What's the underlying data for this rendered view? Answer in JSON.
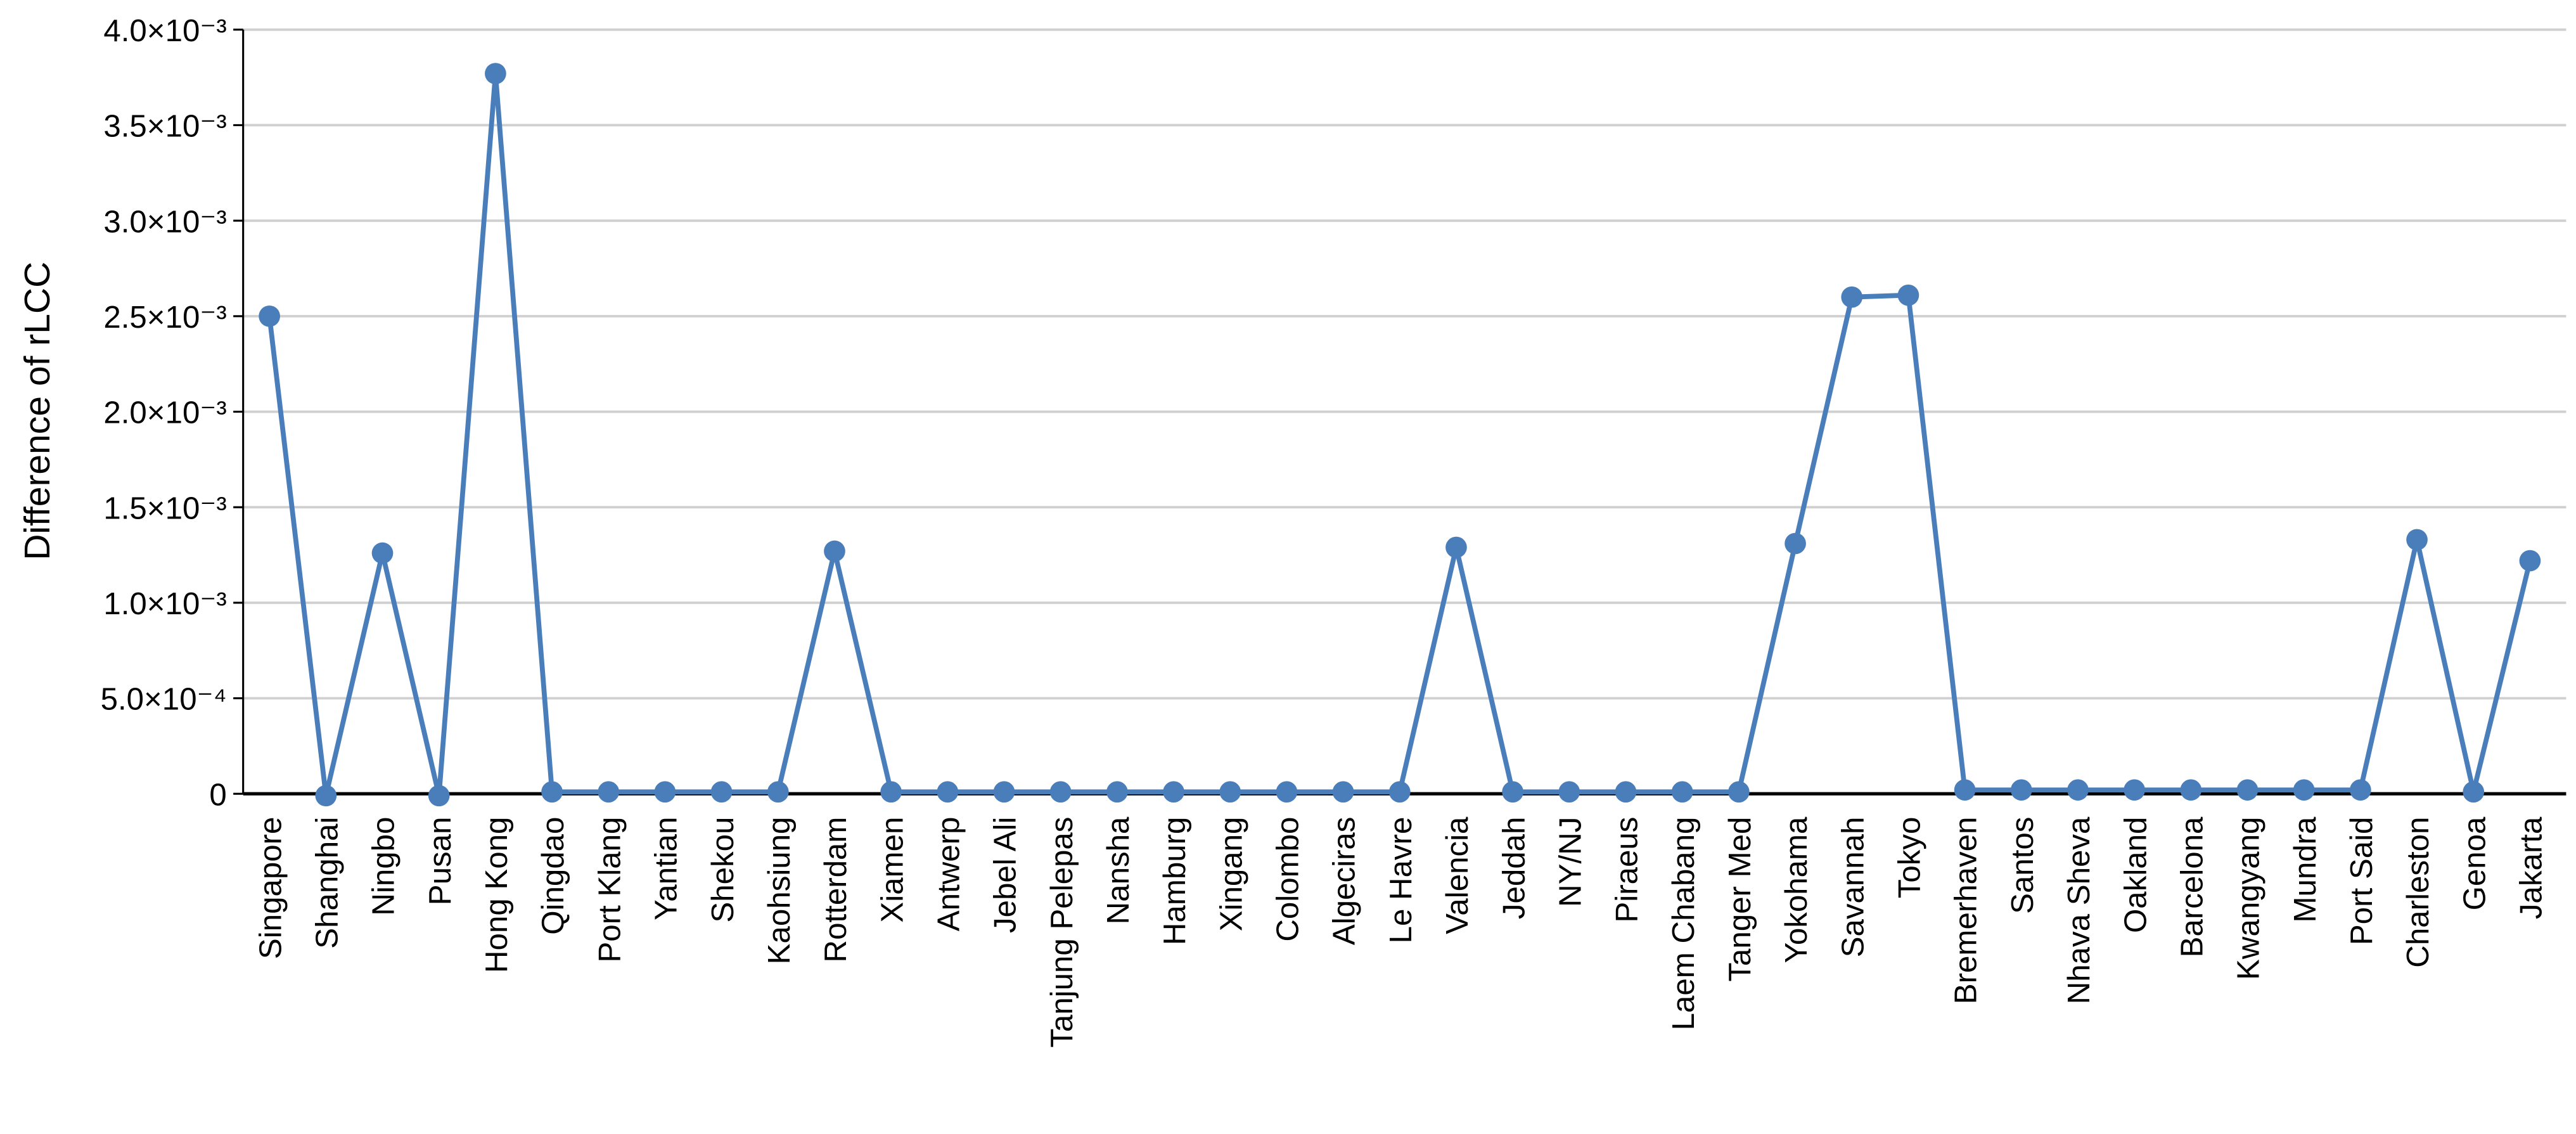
{
  "chart_data": {
    "type": "line",
    "y_label": "Difference of rLCC",
    "categories": [
      "Singapore",
      "Shanghai",
      "Ningbo",
      "Pusan",
      "Hong Kong",
      "Qingdao",
      "Port Klang",
      "Yantian",
      "Shekou",
      "Kaohsiung",
      "Rotterdam",
      "Xiamen",
      "Antwerp",
      "Jebel Ali",
      "Tanjung Pelepas",
      "Nansha",
      "Hamburg",
      "Xingang",
      "Colombo",
      "Algeciras",
      "Le Havre",
      "Valencia",
      "Jeddah",
      "NY/NJ",
      "Piraeus",
      "Laem Chabang",
      "Tanger Med",
      "Yokohama",
      "Savannah",
      "Tokyo",
      "Bremerhaven",
      "Santos",
      "Nhava Sheva",
      "Oakland",
      "Barcelona",
      "Kwangyang",
      "Mundra",
      "Port Said",
      "Charleston",
      "Genoa",
      "Jakarta"
    ],
    "series": [
      {
        "name": "Difference of rLCC",
        "color": "#4a7ebb",
        "values": [
          0.0025,
          -1e-05,
          0.00126,
          -1e-05,
          0.00377,
          1e-05,
          1e-05,
          1e-05,
          1e-05,
          1e-05,
          0.00127,
          1e-05,
          1e-05,
          1e-05,
          1e-05,
          1e-05,
          1e-05,
          1e-05,
          1e-05,
          1e-05,
          1e-05,
          0.00129,
          1e-05,
          1e-05,
          1e-05,
          1e-05,
          1e-05,
          0.00131,
          0.0026,
          0.00261,
          2e-05,
          2e-05,
          2e-05,
          2e-05,
          2e-05,
          2e-05,
          2e-05,
          2e-05,
          0.00133,
          1e-05,
          0.00122
        ]
      }
    ],
    "ylim": [
      0,
      0.004
    ],
    "yticks": [
      0,
      {
        "value": 0.0005,
        "label": "5.0×10⁻⁴"
      },
      {
        "value": 0.001,
        "label": "1.0×10⁻³"
      },
      {
        "value": 0.0015,
        "label": "1.5×10⁻³"
      },
      {
        "value": 0.002,
        "label": "2.0×10⁻³"
      },
      {
        "value": 0.0025,
        "label": "2.5×10⁻³"
      },
      {
        "value": 0.003,
        "label": "3.0×10⁻³"
      },
      {
        "value": 0.0035,
        "label": "3.5×10⁻³"
      },
      {
        "value": 0.004,
        "label": "4.0×10⁻³"
      }
    ],
    "grid": true
  }
}
